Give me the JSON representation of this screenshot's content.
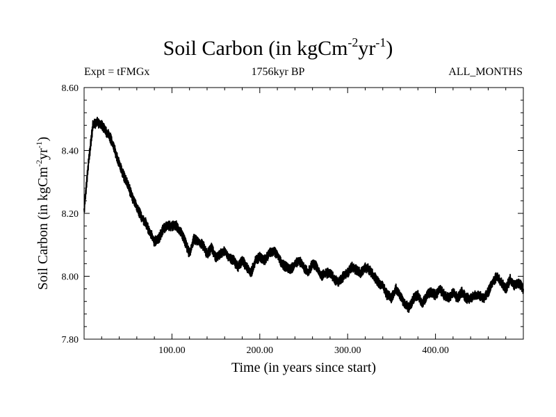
{
  "chart_data": {
    "type": "line",
    "title_main": "Soil Carbon (in kgCm",
    "title_sup1": "-2",
    "title_mid": "yr",
    "title_sup2": "-1",
    "title_end": ")",
    "header_left": "Expt = tFMGx",
    "header_center": "1756kyr BP",
    "header_right": "ALL_MONTHS",
    "xlabel": "Time (in years since start)",
    "ylabel_main": "Soil Carbon (in kgCm",
    "ylabel_sup1": "-2",
    "ylabel_mid": "yr",
    "ylabel_sup2": "-1",
    "ylabel_end": ")",
    "xlim": [
      0,
      500
    ],
    "ylim": [
      7.8,
      8.6
    ],
    "x_ticks": [
      {
        "value": 100,
        "label": "100.00"
      },
      {
        "value": 200,
        "label": "200.00"
      },
      {
        "value": 300,
        "label": "300.00"
      },
      {
        "value": 400,
        "label": "400.00"
      }
    ],
    "y_ticks": [
      {
        "value": 7.8,
        "label": "7.80"
      },
      {
        "value": 8.0,
        "label": "8.00"
      },
      {
        "value": 8.2,
        "label": "8.20"
      },
      {
        "value": 8.4,
        "label": "8.40"
      },
      {
        "value": 8.6,
        "label": "8.60"
      }
    ],
    "series": [
      {
        "name": "Soil Carbon",
        "color": "#000000",
        "x": [
          0,
          5,
          10,
          15,
          20,
          25,
          30,
          35,
          40,
          45,
          50,
          55,
          60,
          65,
          70,
          75,
          80,
          85,
          90,
          95,
          100,
          105,
          110,
          115,
          120,
          125,
          130,
          135,
          140,
          145,
          150,
          155,
          160,
          165,
          170,
          175,
          180,
          185,
          190,
          195,
          200,
          205,
          210,
          215,
          220,
          225,
          230,
          235,
          240,
          245,
          250,
          255,
          260,
          265,
          270,
          275,
          280,
          285,
          290,
          295,
          300,
          305,
          310,
          315,
          320,
          325,
          330,
          335,
          340,
          345,
          350,
          355,
          360,
          365,
          370,
          375,
          380,
          385,
          390,
          395,
          400,
          405,
          410,
          415,
          420,
          425,
          430,
          435,
          440,
          445,
          450,
          455,
          460,
          465,
          470,
          475,
          480,
          485,
          490,
          495,
          500
        ],
        "values": [
          8.21,
          8.36,
          8.48,
          8.49,
          8.48,
          8.46,
          8.44,
          8.4,
          8.36,
          8.32,
          8.29,
          8.25,
          8.22,
          8.19,
          8.17,
          8.14,
          8.11,
          8.12,
          8.15,
          8.16,
          8.16,
          8.16,
          8.14,
          8.11,
          8.07,
          8.12,
          8.11,
          8.1,
          8.07,
          8.09,
          8.06,
          8.07,
          8.08,
          8.06,
          8.05,
          8.03,
          8.05,
          8.03,
          8.01,
          8.05,
          8.06,
          8.05,
          8.07,
          8.08,
          8.07,
          8.04,
          8.03,
          8.02,
          8.04,
          8.05,
          8.03,
          8.01,
          8.04,
          8.03,
          8.0,
          8.01,
          8.01,
          7.99,
          7.98,
          8.0,
          8.01,
          8.03,
          8.02,
          8.01,
          8.03,
          8.02,
          8.0,
          7.98,
          7.97,
          7.94,
          7.93,
          7.96,
          7.94,
          7.91,
          7.9,
          7.93,
          7.94,
          7.91,
          7.94,
          7.95,
          7.94,
          7.96,
          7.94,
          7.93,
          7.95,
          7.93,
          7.95,
          7.93,
          7.93,
          7.94,
          7.94,
          7.93,
          7.95,
          7.98,
          8.0,
          7.98,
          7.96,
          7.99,
          7.97,
          7.98,
          7.96
        ]
      }
    ]
  }
}
